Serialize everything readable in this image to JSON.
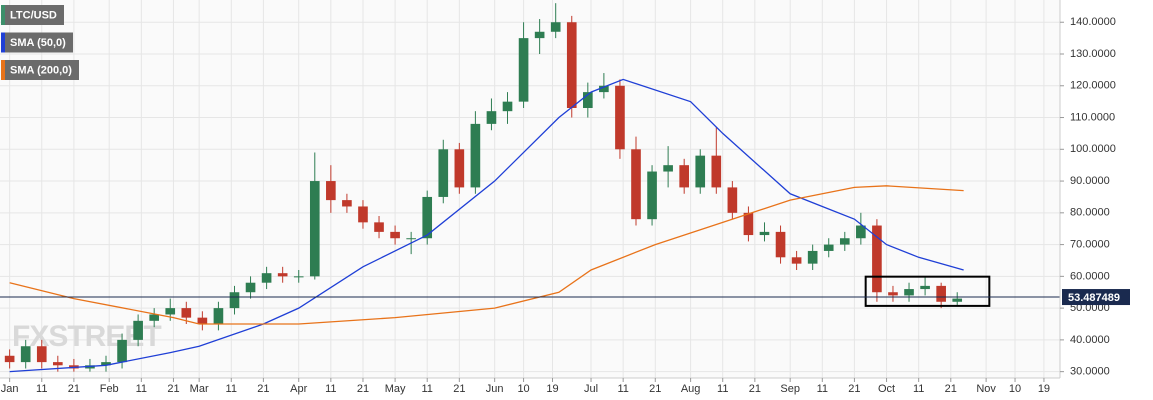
{
  "chart_data": {
    "type": "candlestick",
    "watermark": "FXSTREET",
    "grid": true,
    "xlim": [
      -2,
      328
    ],
    "ylim": [
      28,
      147
    ],
    "xticks": [
      {
        "value": 1,
        "label": "Jan"
      },
      {
        "value": 11,
        "label": "11"
      },
      {
        "value": 21,
        "label": "21"
      },
      {
        "value": 32,
        "label": "Feb"
      },
      {
        "value": 42,
        "label": "11"
      },
      {
        "value": 52,
        "label": "21"
      },
      {
        "value": 60,
        "label": "Mar"
      },
      {
        "value": 70,
        "label": "11"
      },
      {
        "value": 80,
        "label": "21"
      },
      {
        "value": 91,
        "label": "Apr"
      },
      {
        "value": 101,
        "label": "11"
      },
      {
        "value": 111,
        "label": "21"
      },
      {
        "value": 121,
        "label": "May"
      },
      {
        "value": 131,
        "label": "11"
      },
      {
        "value": 141,
        "label": "21"
      },
      {
        "value": 152,
        "label": "Jun"
      },
      {
        "value": 161,
        "label": "10"
      },
      {
        "value": 170,
        "label": "19"
      },
      {
        "value": 182,
        "label": "Jul"
      },
      {
        "value": 192,
        "label": "11"
      },
      {
        "value": 202,
        "label": "21"
      },
      {
        "value": 213,
        "label": "Aug"
      },
      {
        "value": 223,
        "label": "11"
      },
      {
        "value": 233,
        "label": "21"
      },
      {
        "value": 244,
        "label": "Sep"
      },
      {
        "value": 254,
        "label": "11"
      },
      {
        "value": 264,
        "label": "21"
      },
      {
        "value": 274,
        "label": "Oct"
      },
      {
        "value": 284,
        "label": "11"
      },
      {
        "value": 294,
        "label": "21"
      },
      {
        "value": 305,
        "label": "Nov"
      },
      {
        "value": 314,
        "label": "10"
      },
      {
        "value": 323,
        "label": "19"
      }
    ],
    "yticks": [
      {
        "value": 30,
        "label": "30.0000"
      },
      {
        "value": 40,
        "label": "40.0000"
      },
      {
        "value": 50,
        "label": "50.0000"
      },
      {
        "value": 60,
        "label": "60.0000"
      },
      {
        "value": 70,
        "label": "70.0000"
      },
      {
        "value": 80,
        "label": "80.0000"
      },
      {
        "value": 90,
        "label": "90.0000"
      },
      {
        "value": 100,
        "label": "100.0000"
      },
      {
        "value": 110,
        "label": "110.0000"
      },
      {
        "value": 120,
        "label": "120.0000"
      },
      {
        "value": 130,
        "label": "130.0000"
      },
      {
        "value": 140,
        "label": "140.0000"
      }
    ],
    "last_price": 53.487489,
    "last_price_color": "#1a2a4f",
    "box": {
      "x": [
        267.5,
        306
      ],
      "y": [
        50.7,
        59.9
      ]
    },
    "series": [
      {
        "name": "LTC/USD",
        "type": "candlestick",
        "color": "#3c8f6a",
        "up_color": "#2e7d52",
        "down_color": "#c0392b",
        "x": [
          1,
          6,
          11,
          16,
          21,
          26,
          31,
          36,
          41,
          46,
          51,
          56,
          61,
          66,
          71,
          76,
          81,
          86,
          91,
          96,
          101,
          106,
          111,
          116,
          121,
          126,
          131,
          136,
          141,
          146,
          151,
          156,
          161,
          166,
          171,
          176,
          181,
          186,
          191,
          196,
          201,
          206,
          211,
          216,
          221,
          226,
          231,
          236,
          241,
          246,
          251,
          256,
          261,
          266,
          271,
          276,
          281,
          286,
          291,
          296
        ],
        "open": [
          35,
          33,
          38,
          33,
          32,
          31,
          32,
          33,
          40,
          46,
          48,
          50,
          47,
          45,
          50,
          55,
          58,
          61,
          60,
          60,
          90,
          84,
          82,
          77,
          74,
          72,
          72,
          85,
          100,
          88,
          108,
          112,
          115,
          135,
          137,
          140,
          113,
          118,
          120,
          100,
          78,
          93,
          95,
          88,
          98,
          88,
          80,
          73,
          74,
          66,
          64,
          68,
          70,
          72,
          76,
          55,
          54,
          56,
          57,
          52
        ],
        "high": [
          37,
          40,
          40,
          35,
          34,
          34,
          35,
          42,
          48,
          50,
          53,
          52,
          49,
          52,
          57,
          60,
          63,
          63,
          62,
          99,
          95,
          86,
          84,
          79,
          76,
          74,
          87,
          103,
          102,
          112,
          116,
          118,
          140,
          141,
          146,
          142,
          121,
          124,
          122,
          104,
          95,
          101,
          97,
          100,
          107,
          90,
          82,
          77,
          76,
          68,
          70,
          72,
          74,
          80,
          78,
          57,
          58,
          60,
          58,
          55
        ],
        "low": [
          31,
          31,
          31,
          30,
          30,
          30,
          30,
          31,
          38,
          44,
          46,
          45,
          43,
          43,
          48,
          53,
          56,
          58,
          58,
          59,
          80,
          80,
          75,
          72,
          70,
          67,
          70,
          83,
          86,
          86,
          106,
          108,
          113,
          130,
          135,
          110,
          110,
          116,
          97,
          76,
          76,
          88,
          86,
          86,
          86,
          78,
          71,
          71,
          64,
          62,
          62,
          66,
          68,
          70,
          52,
          52,
          52,
          54,
          50,
          51
        ],
        "close": [
          33,
          38,
          33,
          32,
          31,
          32,
          33,
          40,
          46,
          48,
          50,
          47,
          45,
          50,
          55,
          58,
          61,
          60,
          60,
          90,
          84,
          82,
          77,
          74,
          72,
          72,
          85,
          100,
          88,
          108,
          112,
          115,
          135,
          137,
          140,
          113,
          118,
          120,
          100,
          78,
          93,
          95,
          88,
          98,
          88,
          80,
          73,
          74,
          66,
          64,
          68,
          70,
          72,
          76,
          55,
          54,
          56,
          57,
          52,
          53
        ]
      },
      {
        "name": "SMA (50,0)",
        "type": "line",
        "color": "#1f3fd6",
        "x": [
          1,
          31,
          51,
          60,
          80,
          91,
          111,
          131,
          152,
          172,
          182,
          192,
          213,
          223,
          244,
          254,
          264,
          274,
          284,
          298
        ],
        "values": [
          30,
          32,
          36,
          38,
          45,
          50,
          63,
          73,
          90,
          110,
          118,
          122,
          115,
          105,
          86,
          82,
          78,
          70,
          66,
          62
        ]
      },
      {
        "name": "SMA (200,0)",
        "type": "line",
        "color": "#e8731a",
        "x": [
          1,
          21,
          52,
          60,
          91,
          121,
          152,
          172,
          182,
          202,
          223,
          244,
          264,
          274,
          298
        ],
        "values": [
          58,
          53,
          47,
          45,
          45,
          47,
          50,
          55,
          62,
          70,
          77,
          84,
          88,
          88.5,
          87
        ]
      }
    ]
  }
}
